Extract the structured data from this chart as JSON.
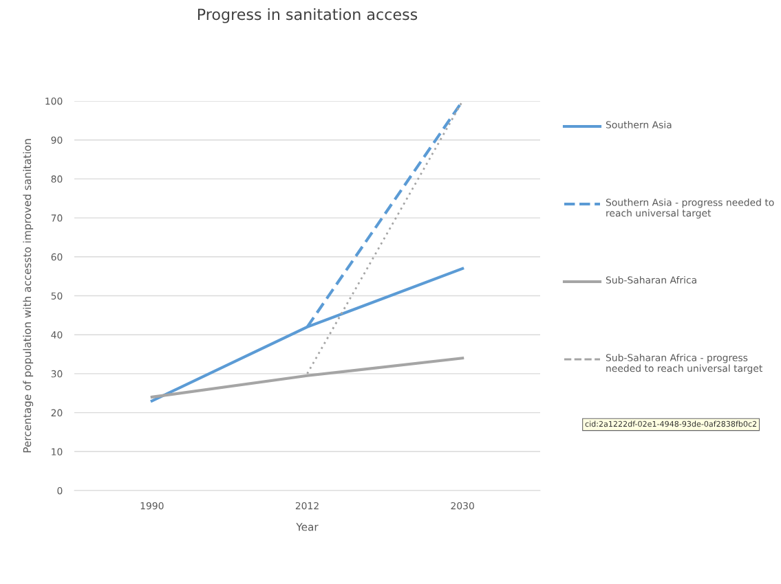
{
  "chart_data": {
    "type": "line",
    "title": "Progress in sanitation access",
    "xlabel": "Year",
    "ylabel": "Percentage of population with accessto improved sanitation",
    "categories": [
      "1990",
      "2012",
      "2030"
    ],
    "series": [
      {
        "name": "Southern Asia",
        "color": "#5b9bd5",
        "values": [
          23,
          42,
          57
        ],
        "line_style": "solid"
      },
      {
        "name": "Southern Asia - progress needed to reach universal target",
        "color": "#5b9bd5",
        "values": [
          null,
          42,
          100
        ],
        "line_style": "dashed"
      },
      {
        "name": "Sub-Saharan Africa",
        "color": "#a5a5a5",
        "values": [
          24,
          29.5,
          34
        ],
        "line_style": "solid"
      },
      {
        "name": "Sub-Saharan Africa - progress needed to reach universal target",
        "color": "#a5a5a5",
        "values": [
          null,
          30,
          100
        ],
        "line_style": "dotted"
      }
    ],
    "ylim": [
      0,
      100
    ],
    "yticks": [
      0,
      10,
      20,
      30,
      40,
      50,
      60,
      70,
      80,
      90,
      100
    ],
    "grid": "y",
    "legend": "right",
    "marker": "none",
    "annotations": [
      "cid:2a1222df-02e1-4948-93de-0af2838fb0c2"
    ]
  }
}
